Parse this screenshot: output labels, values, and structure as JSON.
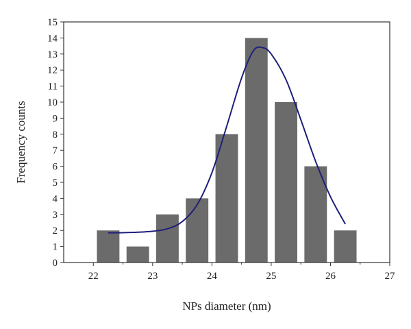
{
  "chart_data": {
    "type": "bar",
    "xlabel": "NPs diameter (nm)",
    "ylabel": "Frequency counts",
    "xlim": [
      21.5,
      27
    ],
    "ylim": [
      0,
      15
    ],
    "x_ticks": [
      22,
      23,
      24,
      25,
      26,
      27
    ],
    "y_ticks": [
      0,
      1,
      2,
      3,
      4,
      5,
      6,
      7,
      8,
      9,
      10,
      11,
      12,
      13,
      14,
      15
    ],
    "bar_width": 0.38,
    "series": [
      {
        "values": [
          {
            "x": 22.25,
            "y": 2
          },
          {
            "x": 22.75,
            "y": 1
          },
          {
            "x": 23.25,
            "y": 3
          },
          {
            "x": 23.75,
            "y": 4
          },
          {
            "x": 24.25,
            "y": 8
          },
          {
            "x": 24.75,
            "y": 14
          },
          {
            "x": 25.25,
            "y": 10
          },
          {
            "x": 25.75,
            "y": 6
          },
          {
            "x": 26.25,
            "y": 2
          }
        ],
        "color": "#6b6b6b"
      }
    ],
    "fit_curve": {
      "type": "gaussian",
      "color": "#1f1f7a",
      "points": [
        [
          22.25,
          1.85
        ],
        [
          22.5,
          1.86
        ],
        [
          22.75,
          1.89
        ],
        [
          23.0,
          1.95
        ],
        [
          23.25,
          2.1
        ],
        [
          23.5,
          2.55
        ],
        [
          23.75,
          3.6
        ],
        [
          24.0,
          5.6
        ],
        [
          24.25,
          8.5
        ],
        [
          24.5,
          11.5
        ],
        [
          24.7,
          13.2
        ],
        [
          24.85,
          13.4
        ],
        [
          25.0,
          13.0
        ],
        [
          25.25,
          11.4
        ],
        [
          25.5,
          8.9
        ],
        [
          25.75,
          6.3
        ],
        [
          26.0,
          4.1
        ],
        [
          26.25,
          2.4
        ]
      ]
    },
    "grid": false,
    "legend": "none"
  }
}
